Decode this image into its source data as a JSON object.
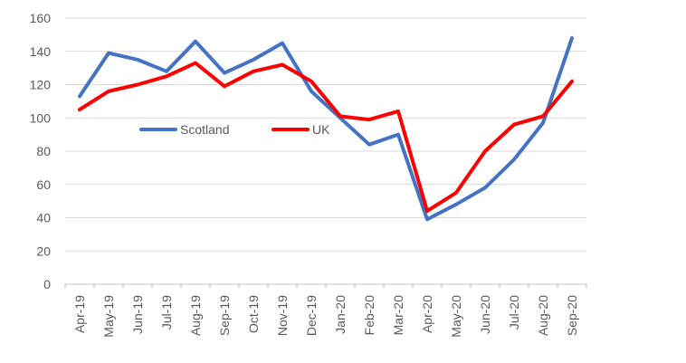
{
  "chart_data": {
    "type": "line",
    "categories": [
      "Apr-19",
      "May-19",
      "Jun-19",
      "Jul-19",
      "Aug-19",
      "Sep-19",
      "Oct-19",
      "Nov-19",
      "Dec-19",
      "Jan-20",
      "Feb-20",
      "Mar-20",
      "Apr-20",
      "May-20",
      "Jun-20",
      "Jul-20",
      "Aug-20",
      "Sep-20"
    ],
    "series": [
      {
        "name": "Scotland",
        "color": "#4472C4",
        "values": [
          113,
          139,
          135,
          128,
          146,
          127,
          135,
          145,
          116,
          100,
          84,
          90,
          39,
          48,
          58,
          75,
          97,
          148
        ]
      },
      {
        "name": "UK",
        "color": "#FF0000",
        "values": [
          105,
          116,
          120,
          125,
          133,
          119,
          128,
          132,
          122,
          101,
          99,
          104,
          44,
          55,
          80,
          96,
          101,
          122
        ]
      }
    ],
    "ylim": [
      0,
      160
    ],
    "yticks": [
      0,
      20,
      40,
      60,
      80,
      100,
      120,
      140,
      160
    ],
    "grid": true,
    "legend": "inside-center-left",
    "title": "",
    "xlabel": "",
    "ylabel": ""
  }
}
